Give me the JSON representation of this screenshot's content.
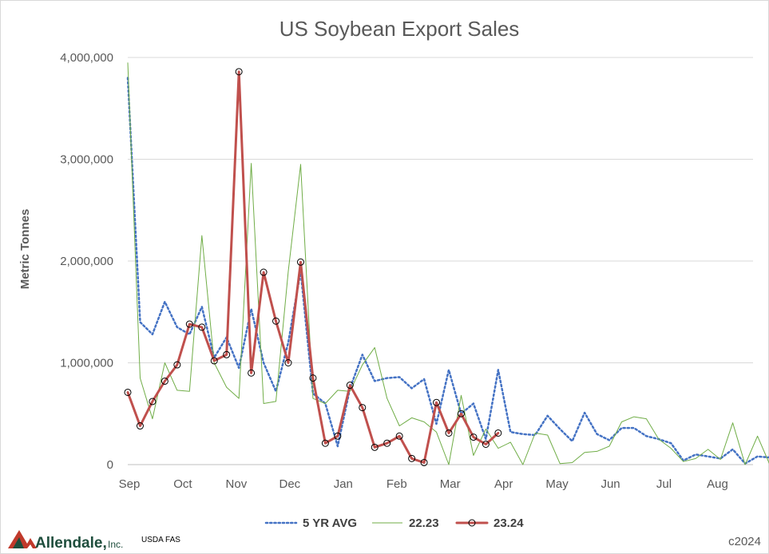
{
  "chart_data": {
    "type": "line",
    "title": "US Soybean Export Sales",
    "ylabel": "Metric Tonnes",
    "xlabel": "",
    "ylim": [
      0,
      4000000
    ],
    "y_ticks": [
      "0",
      "1,000,000",
      "2,000,000",
      "3,000,000",
      "4,000,000"
    ],
    "month_labels": [
      "Sep",
      "Oct",
      "Nov",
      "Dec",
      "Jan",
      "Feb",
      "Mar",
      "Apr",
      "May",
      "Jun",
      "Jul",
      "Aug"
    ],
    "weeks_per_month": 4.33,
    "grid": "horizontal",
    "legend_position": "bottom",
    "series": [
      {
        "name": "5 YR AVG",
        "color": "#4472c4",
        "style": "dotted",
        "values": [
          3800000,
          1400000,
          1280000,
          1600000,
          1350000,
          1280000,
          1550000,
          1050000,
          1250000,
          950000,
          1530000,
          1000000,
          720000,
          1200000,
          1900000,
          700000,
          600000,
          180000,
          750000,
          1080000,
          820000,
          850000,
          860000,
          750000,
          840000,
          400000,
          930000,
          500000,
          600000,
          250000,
          930000,
          320000,
          300000,
          290000,
          480000,
          350000,
          230000,
          510000,
          300000,
          240000,
          360000,
          360000,
          280000,
          250000,
          210000,
          40000,
          100000,
          80000,
          60000,
          150000,
          10000,
          80000,
          70000
        ]
      },
      {
        "name": "22.23",
        "color": "#70ad47",
        "style": "thin",
        "values": [
          3950000,
          850000,
          450000,
          1000000,
          730000,
          720000,
          2250000,
          1000000,
          760000,
          650000,
          2960000,
          600000,
          620000,
          1900000,
          2950000,
          650000,
          600000,
          730000,
          720000,
          980000,
          1150000,
          650000,
          380000,
          460000,
          420000,
          320000,
          0,
          680000,
          90000,
          350000,
          160000,
          220000,
          0,
          310000,
          290000,
          10000,
          20000,
          120000,
          130000,
          180000,
          420000,
          470000,
          450000,
          250000,
          160000,
          30000,
          60000,
          150000,
          50000,
          410000,
          0,
          280000,
          0
        ]
      },
      {
        "name": "23.24",
        "color": "#c0504d",
        "style": "thick-marker",
        "values": [
          710000,
          380000,
          620000,
          820000,
          980000,
          1380000,
          1350000,
          1020000,
          1080000,
          3860000,
          900000,
          1890000,
          1410000,
          1000000,
          1990000,
          850000,
          210000,
          280000,
          780000,
          560000,
          170000,
          210000,
          280000,
          60000,
          20000,
          610000,
          310000,
          500000,
          270000,
          200000,
          310000
        ]
      }
    ]
  },
  "footer": {
    "logo_word": "Allendale,",
    "logo_inc": "Inc.",
    "source": "USDA FAS",
    "copyright": "c2024"
  }
}
